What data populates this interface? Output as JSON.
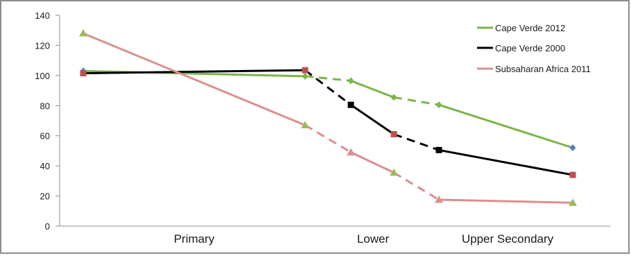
{
  "chart_data": {
    "type": "line",
    "title": "",
    "xlabel": "",
    "ylabel": "",
    "ylim": [
      0,
      140
    ],
    "yticks": [
      0,
      20,
      40,
      60,
      80,
      100,
      120,
      140
    ],
    "category_labels": [
      "Primary",
      "Lower",
      "Upper Secondary"
    ],
    "grid": false,
    "legend_position": "top-right",
    "series": [
      {
        "name": "Cape Verde 2012",
        "color": "#7ab648",
        "marker": "diamond",
        "marker_colors": [
          "#4f81bd",
          "#7ab648",
          "#7ab648",
          "#7ab648",
          "#7ab648",
          "#4f81bd"
        ],
        "values": [
          103,
          99.5,
          96.5,
          85.5,
          80.5,
          52
        ],
        "segment_styles": [
          "solid",
          "dashed",
          "solid",
          "dashed",
          "solid"
        ]
      },
      {
        "name": "Cape Verde 2000",
        "color": "#000000",
        "marker": "square",
        "marker_colors": [
          "#c0504d",
          "#c0504d",
          "#000000",
          "#c0504d",
          "#000000",
          "#c0504d"
        ],
        "values": [
          101.5,
          103.5,
          80.5,
          61,
          50.5,
          34
        ],
        "segment_styles": [
          "solid",
          "dashed",
          "solid",
          "dashed",
          "solid"
        ]
      },
      {
        "name": "Subsaharan Africa 2011",
        "color": "#dc8e8e",
        "marker": "triangle",
        "marker_colors": [
          "#9bbb59",
          "#9bbb59",
          "#dc8e8e",
          "#9bbb59",
          "#dc8e8e",
          "#9bbb59"
        ],
        "values": [
          128,
          67,
          49,
          35.5,
          17.5,
          15.5
        ],
        "segment_styles": [
          "solid",
          "dashed",
          "solid",
          "dashed",
          "solid"
        ]
      }
    ]
  }
}
